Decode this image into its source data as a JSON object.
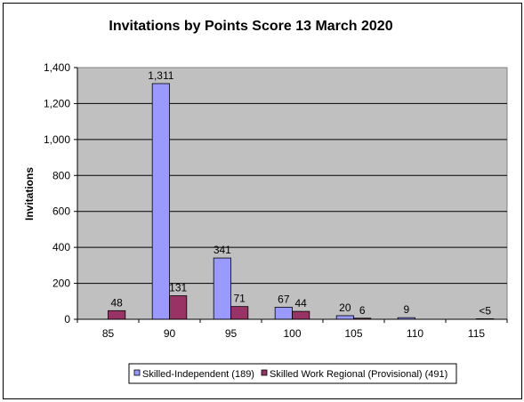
{
  "chart_data": {
    "type": "bar",
    "title": "Invitations by Points Score 13 March 2020",
    "xlabel": "",
    "ylabel": "Invitations",
    "categories": [
      "85",
      "90",
      "95",
      "100",
      "105",
      "110",
      "115"
    ],
    "ylim": [
      0,
      1400
    ],
    "yticks": [
      0,
      200,
      400,
      600,
      800,
      1000,
      1200,
      1400
    ],
    "ytick_labels": [
      "0",
      "200",
      "400",
      "600",
      "800",
      "1,000",
      "1,200",
      "1,400"
    ],
    "grid": "horizontal",
    "legend_position": "bottom",
    "plot_background": "#C0C0C0",
    "series": [
      {
        "name": "Skilled-Independent (189)",
        "color": "#9999FF",
        "values": [
          0,
          1311,
          341,
          67,
          20,
          9,
          0
        ],
        "labels": [
          "",
          "1,311",
          "341",
          "67",
          "20",
          "9",
          ""
        ]
      },
      {
        "name": "Skilled Work Regional (Provisional) (491)",
        "color": "#993366",
        "values": [
          48,
          131,
          71,
          44,
          6,
          0,
          3
        ],
        "labels": [
          "48",
          "131",
          "71",
          "44",
          "6",
          "",
          "<5"
        ]
      }
    ]
  }
}
